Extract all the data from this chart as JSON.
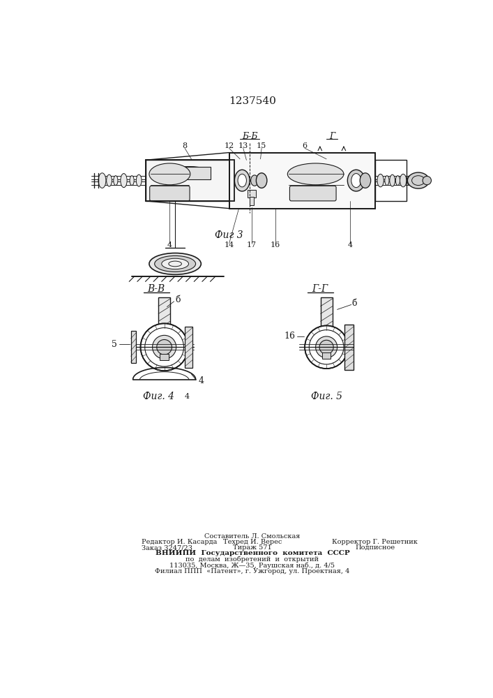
{
  "patent_number": "1237540",
  "bg_color": "#ffffff",
  "line_color": "#1a1a1a",
  "fig3_label": "Фиг 3",
  "fig4_label": "Фиг. 4",
  "fig5_label": "Фиг. 5",
  "section_BB": "Б-Б",
  "section_VV": "В-В",
  "section_GG": "Г-Г",
  "footer_line1_left": "Редактор И. Касарда",
  "footer_line2_left": "Заказ 3247/23",
  "footer_line1_center": "Составитель Л. Смольская",
  "footer_line2_center": "Техред И. Верес",
  "footer_line3_center": "Тираж 571",
  "footer_line2_right": "Корректор Г. Решетник",
  "footer_line3_right": "Подписное",
  "footer_vniipи": "ВНИИПИ  Государственного  комитета  СССР",
  "footer_addr1": "по  делам  изобретений  и  открытий",
  "footer_addr2": "113035, Москва, Ж—35, Раушская наб., д. 4/5",
  "footer_addr3": "Филиал ППП  «Патент», г. Ужгород, ул. Проектная, 4"
}
